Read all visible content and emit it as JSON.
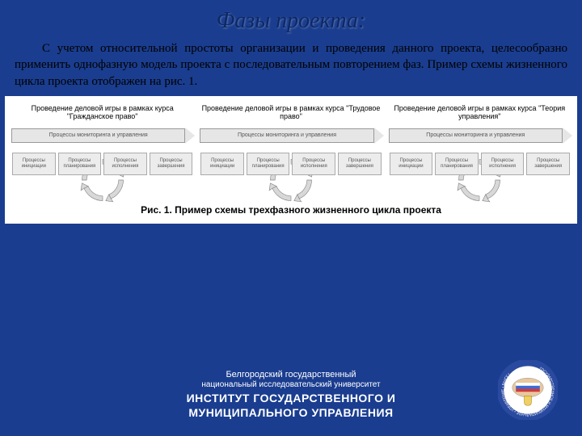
{
  "colors": {
    "slide_bg": "#1a3d8f",
    "title_color": "#0d2866",
    "diagram_bg": "#ffffff",
    "box_bg": "#ececec",
    "box_border": "#aaaaaa",
    "arrow_fill": "#e6e6e6",
    "arrow_stroke": "#999999",
    "cycle_fill": "#d8d8d8",
    "cycle_stroke": "#888888",
    "text": "#000000",
    "footer_text": "#ffffff"
  },
  "fonts": {
    "title_family": "Times New Roman, serif",
    "title_size_pt": 22,
    "body_family": "Georgia, Times New Roman, serif",
    "body_size_pt": 11,
    "diagram_family": "Arial, sans-serif",
    "caption_size_pt": 9,
    "footer_small_pt": 8,
    "footer_large_pt": 11
  },
  "title": "Фазы проекта:",
  "body": "С учетом относительной простоты организации и проведения данного проекта, целесообразно применить однофазную модель проекта с последовательным повторением фаз. Пример схемы жизненного цикла проекта отображен на рис. 1.",
  "diagram": {
    "type": "flowchart",
    "phases": [
      {
        "title": "Проведение деловой игры в рамках курса \"Гражданское право\"",
        "arrow_label": "Процессы мониторинга и управления",
        "boxes": [
          "Процессы инициации",
          "Процессы планирования",
          "Процессы исполнения",
          "Процессы завершения"
        ]
      },
      {
        "title": "Проведение деловой игры в рамках курса \"Трудовое право\"",
        "arrow_label": "Процессы мониторинга и управления",
        "boxes": [
          "Процессы инициации",
          "Процессы планирования",
          "Процессы исполнения",
          "Процессы завершения"
        ]
      },
      {
        "title": "Проведение деловой игры в рамках курса \"Теория управления\"",
        "arrow_label": "Процессы мониторинга и управления",
        "boxes": [
          "Процессы инициации",
          "Процессы планирования",
          "Процессы исполнения",
          "Процессы завершения"
        ]
      }
    ]
  },
  "caption": "Рис. 1. Пример схемы трехфазного жизненного цикла проекта",
  "footer": {
    "line1": "Белгородский государственный",
    "line2": "национальный исследовательский университет",
    "line3a": "ИНСТИТУТ ГОСУДАРСТВЕННОГО И",
    "line3b": "МУНИЦИПАЛЬНОГО УПРАВЛЕНИЯ"
  },
  "logo": {
    "ring_outer": "#2a4aa0",
    "ring_text": "#ffffff",
    "center_bg": "#ffffff",
    "flag_colors": [
      "#ffffff",
      "#3a6bd8",
      "#d23a3a"
    ],
    "shield": "#f0d060"
  }
}
